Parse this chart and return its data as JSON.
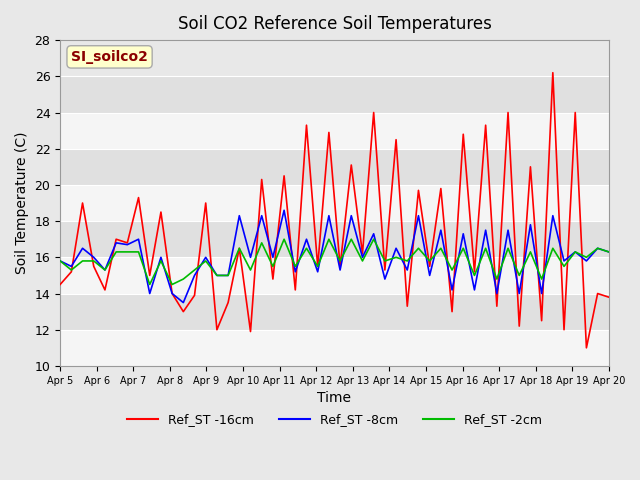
{
  "title": "Soil CO2 Reference Soil Temperatures",
  "xlabel": "Time",
  "ylabel": "Soil Temperature (C)",
  "ylim": [
    10,
    28
  ],
  "annotation_text": "SI_soilco2",
  "annotation_color": "#8B0000",
  "annotation_bg": "#FFFFCC",
  "bg_color": "#E8E8E8",
  "plot_bg": "#F0F0F0",
  "line_colors": {
    "16cm": "#FF0000",
    "8cm": "#0000FF",
    "2cm": "#00BB00"
  },
  "legend_labels": [
    "Ref_ST -16cm",
    "Ref_ST -8cm",
    "Ref_ST -2cm"
  ],
  "x_tick_labels": [
    "Apr 5",
    "Apr 6",
    "Apr 7",
    "Apr 8",
    "Apr 9",
    "Apr 10",
    "Apr 11",
    "Apr 12",
    "Apr 13",
    "Apr 14",
    "Apr 15",
    "Apr 16",
    "Apr 17",
    "Apr 18",
    "Apr 19",
    "Apr 20"
  ],
  "x_ticks_pos": [
    0,
    1,
    2,
    3,
    4,
    5,
    6,
    7,
    8,
    9,
    10,
    11,
    12,
    13,
    14,
    15
  ],
  "red_y": [
    14.5,
    15.2,
    19.0,
    15.5,
    14.2,
    17.0,
    16.8,
    19.3,
    15.0,
    18.5,
    14.0,
    13.0,
    13.9,
    19.0,
    12.0,
    13.5,
    16.5,
    11.9,
    20.3,
    14.8,
    20.5,
    14.2,
    23.3,
    15.5,
    22.9,
    15.5,
    21.1,
    16.2,
    24.0,
    15.3,
    22.5,
    13.3,
    19.7,
    15.5,
    19.8,
    13.0,
    22.8,
    15.2,
    23.3,
    13.3,
    24.0,
    12.2,
    21.0,
    12.5,
    26.2,
    12.0,
    24.0,
    11.0,
    14.0,
    13.8
  ],
  "blue_y": [
    15.8,
    15.5,
    16.5,
    16.0,
    15.3,
    16.8,
    16.7,
    17.0,
    14.0,
    16.0,
    14.0,
    13.5,
    15.0,
    16.0,
    15.0,
    15.0,
    18.3,
    16.0,
    18.3,
    16.0,
    18.6,
    15.2,
    17.0,
    15.2,
    18.3,
    15.3,
    18.3,
    16.0,
    17.3,
    14.8,
    16.5,
    15.3,
    18.3,
    15.0,
    17.5,
    14.2,
    17.3,
    14.2,
    17.5,
    14.0,
    17.5,
    14.0,
    17.8,
    14.0,
    18.3,
    15.8,
    16.3,
    15.8,
    16.5,
    16.3
  ],
  "green_y": [
    15.8,
    15.3,
    15.8,
    15.8,
    15.3,
    16.3,
    16.3,
    16.3,
    14.5,
    15.8,
    14.5,
    14.8,
    15.3,
    15.8,
    15.0,
    15.0,
    16.5,
    15.3,
    16.8,
    15.5,
    17.0,
    15.5,
    16.5,
    15.5,
    17.0,
    15.8,
    17.0,
    15.8,
    17.0,
    15.8,
    16.0,
    15.8,
    16.5,
    15.8,
    16.5,
    15.3,
    16.5,
    15.0,
    16.5,
    14.8,
    16.5,
    15.0,
    16.3,
    14.8,
    16.5,
    15.5,
    16.3,
    16.0,
    16.5,
    16.3
  ]
}
